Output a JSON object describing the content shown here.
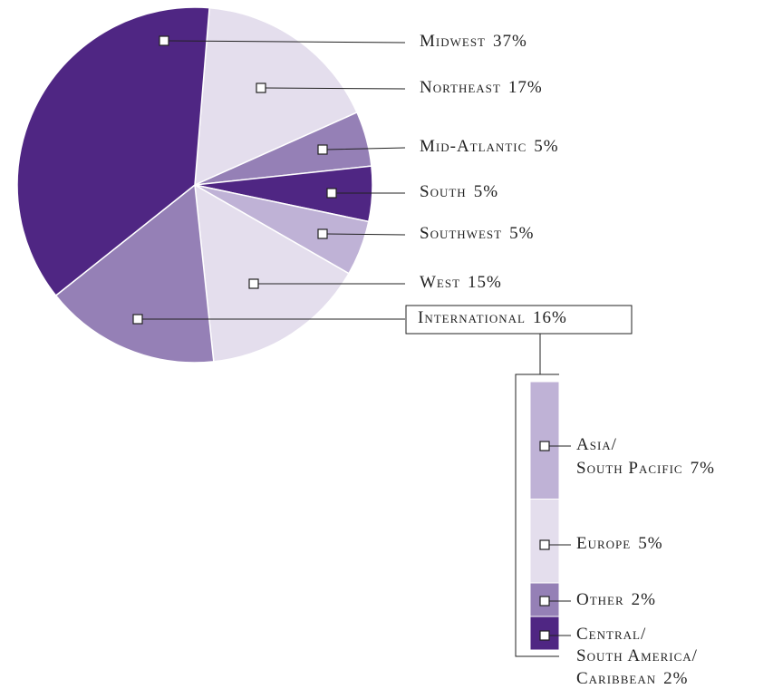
{
  "chart_data": {
    "type": "pie",
    "categories": [
      "Northeast",
      "Mid-Atlantic",
      "South",
      "Southwest",
      "West",
      "International",
      "Midwest"
    ],
    "values": [
      17,
      5,
      5,
      5,
      15,
      16,
      37
    ],
    "value_labels": [
      "17%",
      "5%",
      "5%",
      "5%",
      "15%",
      "16%",
      "37%"
    ],
    "colors": [
      "#e4deed",
      "#9580b6",
      "#4f2683",
      "#bfb2d6",
      "#e4deed",
      "#9580b6",
      "#4f2683"
    ],
    "breakdown": {
      "type": "stacked-bar",
      "categories": [
        [
          "Asia/",
          "South Pacific"
        ],
        [
          "Europe"
        ],
        [
          "Other"
        ],
        [
          "Central/",
          "South America/",
          "Caribbean"
        ]
      ],
      "values": [
        7,
        5,
        2,
        2
      ],
      "value_labels": [
        "7%",
        "5%",
        "2%",
        "2%"
      ],
      "colors": [
        "#bfb2d6",
        "#e4deed",
        "#9580b6",
        "#4f2683"
      ]
    }
  }
}
